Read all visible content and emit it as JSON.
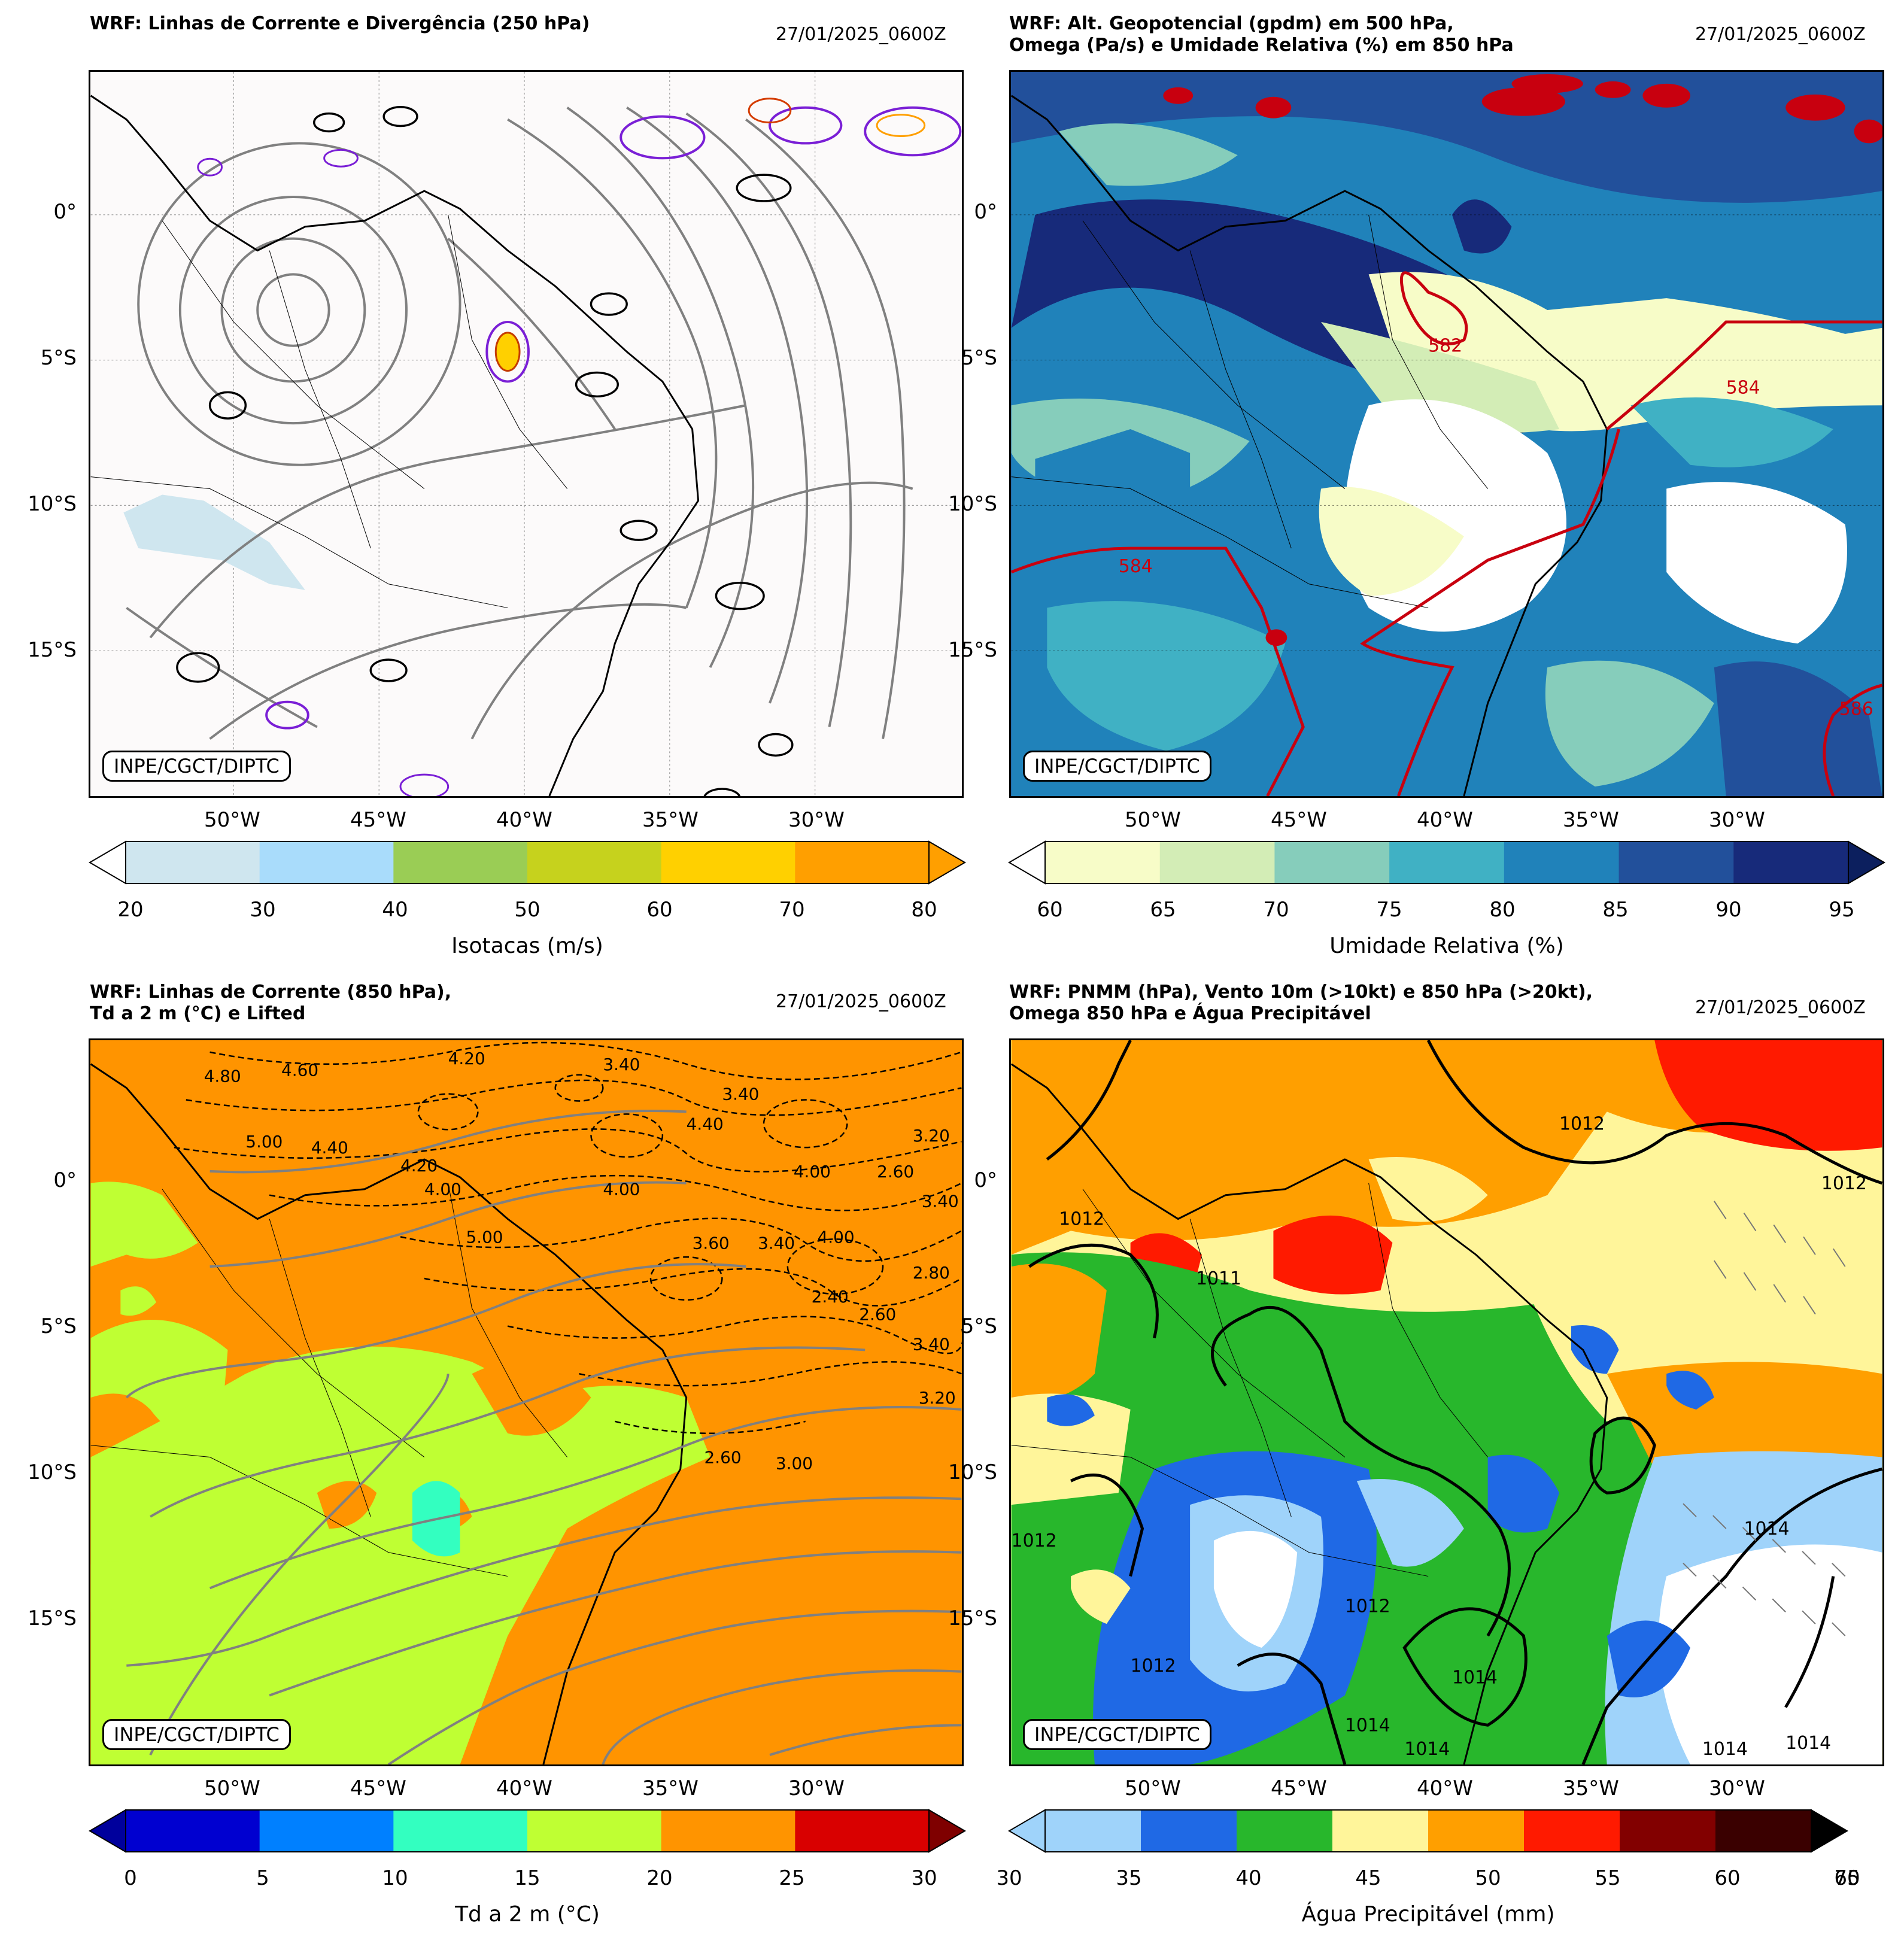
{
  "panels": [
    {
      "title": "WRF: Linhas de Corrente e Divergência (250 hPa)",
      "date": "27/01/2025_0600Z",
      "stamp": "INPE/CGCT/DIPTC",
      "colorbar": {
        "label": "Isotacas (m/s)",
        "ticks": [
          "20",
          "30",
          "40",
          "50",
          "60",
          "70",
          "80"
        ],
        "colors": [
          "#cfe6ef",
          "#a9dcfb",
          "#9acd55",
          "#c6d21d",
          "#ffd000",
          "#ff9f00"
        ],
        "extend_low": "#ffffff",
        "extend_high": "#ff9f00"
      }
    },
    {
      "title": "WRF: Alt. Geopotencial (gpdm) em 500 hPa,\nOmega (Pa/s) e Umidade Relativa (%) em 850 hPa",
      "date": "27/01/2025_0600Z",
      "stamp": "INPE/CGCT/DIPTC",
      "contour_labels": [
        "582",
        "584",
        "584",
        "586"
      ],
      "colorbar": {
        "label": "Umidade Relativa (%)",
        "ticks": [
          "60",
          "65",
          "70",
          "75",
          "80",
          "85",
          "90",
          "95"
        ],
        "colors": [
          "#f7fcc8",
          "#d3edb6",
          "#86cdbb",
          "#40b1c4",
          "#2082ba",
          "#22509b",
          "#172a7a"
        ],
        "extend_low": "#ffffff",
        "extend_high": "#0c1f5e"
      }
    },
    {
      "title": "WRF: Linhas de Corrente (850 hPa),\nTd a 2 m (°C) e Lifted",
      "date": "27/01/2025_0600Z",
      "stamp": "INPE/CGCT/DIPTC",
      "contour_labels": [
        "4.80",
        "4.60",
        "3.40",
        "4.20",
        "5.00",
        "4.40",
        "4.20",
        "4.00",
        "5.00",
        "4.40",
        "3.40",
        "4.00",
        "4.00",
        "2.60",
        "3.60",
        "3.40",
        "4.00",
        "3.20",
        "3.40",
        "2.80",
        "2.40",
        "2.60",
        "3.40",
        "3.20",
        "2.60",
        "3.00"
      ],
      "colorbar": {
        "label": "Td a 2 m (°C)",
        "ticks": [
          "0",
          "5",
          "10",
          "15",
          "20",
          "25",
          "30"
        ],
        "colors": [
          "#0000d0",
          "#0080ff",
          "#33ffc0",
          "#bfff33",
          "#ff9400",
          "#d90000"
        ],
        "extend_low": "#00009c",
        "extend_high": "#7f0000"
      }
    },
    {
      "title": "WRF: PNMM (hPa), Vento 10m (>10kt) e 850 hPa (>20kt),\nOmega 850 hPa e Água Precipitável",
      "date": "27/01/2025_0600Z",
      "stamp": "INPE/CGCT/DIPTC",
      "contour_labels": [
        "1012",
        "1012",
        "1012",
        "1012",
        "1011",
        "1014",
        "1012",
        "1014",
        "1012",
        "1014",
        "1014",
        "1014",
        "1014"
      ],
      "colorbar": {
        "label": "Água Precipitável (mm)",
        "ticks": [
          "30",
          "35",
          "40",
          "45",
          "50",
          "55",
          "60",
          "65",
          "70"
        ],
        "colors": [
          "#9fd3fa",
          "#1f69e5",
          "#28b72c",
          "#fff59a",
          "#ff9f00",
          "#ff1a00",
          "#820000",
          "#3a0000"
        ],
        "extend_low": "#9fd3fa",
        "extend_high": "#000000"
      }
    }
  ],
  "lat_labels": [
    "0°",
    "5°S",
    "10°S",
    "15°S"
  ],
  "lon_labels": [
    "50°W",
    "45°W",
    "40°W",
    "35°W",
    "30°W"
  ]
}
